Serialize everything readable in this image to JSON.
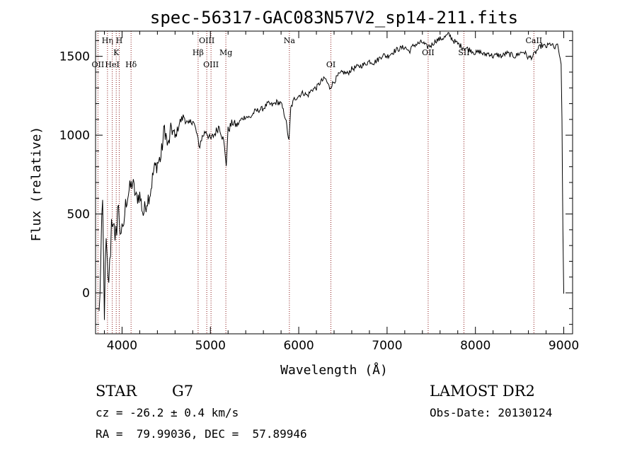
{
  "chart_data": {
    "type": "line",
    "title": "spec-56317-GAC083N57V2_sp14-211.fits",
    "xlabel": "Wavelength (Å)",
    "ylabel": "Flux (relative)",
    "xlim": [
      3700,
      9100
    ],
    "ylim": [
      -260,
      1660
    ],
    "xticks": [
      4000,
      5000,
      6000,
      7000,
      8000,
      9000
    ],
    "yticks": [
      0,
      500,
      1000,
      1500
    ],
    "line_color": "#000000",
    "marker_color": "#8b1a1a",
    "series": [
      {
        "x": [
          3740,
          3760,
          3780,
          3800,
          3820,
          3840,
          3860,
          3880,
          3900,
          3920,
          3950,
          3980,
          4010,
          4040,
          4080,
          4120,
          4160,
          4200,
          4240,
          4280,
          4320,
          4360,
          4400,
          4440,
          4480,
          4520,
          4560,
          4600,
          4650,
          4700,
          4750,
          4800,
          4850,
          4870,
          4900,
          4950,
          5000,
          5050,
          5100,
          5150,
          5180,
          5200,
          5250,
          5300,
          5350,
          5400,
          5450,
          5500,
          5550,
          5600,
          5650,
          5700,
          5750,
          5800,
          5850,
          5890,
          5910,
          5950,
          6000,
          6050,
          6100,
          6150,
          6200,
          6250,
          6300,
          6350,
          6400,
          6450,
          6500,
          6550,
          6600,
          6650,
          6700,
          6750,
          6800,
          6850,
          6900,
          6950,
          7000,
          7050,
          7100,
          7150,
          7200,
          7250,
          7300,
          7350,
          7400,
          7450,
          7500,
          7550,
          7600,
          7650,
          7700,
          7750,
          7800,
          7850,
          7900,
          7950,
          8000,
          8050,
          8100,
          8150,
          8200,
          8250,
          8300,
          8350,
          8400,
          8450,
          8500,
          8550,
          8600,
          8650,
          8700,
          8750,
          8800,
          8850,
          8900,
          8930,
          8950,
          8970,
          8980,
          8990,
          9000
        ],
        "y": [
          -150,
          200,
          550,
          -100,
          300,
          50,
          150,
          450,
          500,
          250,
          550,
          420,
          380,
          560,
          650,
          700,
          600,
          620,
          500,
          580,
          640,
          780,
          820,
          860,
          1050,
          920,
          1050,
          980,
          1080,
          1120,
          1060,
          1100,
          1000,
          920,
          980,
          1030,
          970,
          1010,
          1060,
          960,
          820,
          1030,
          1080,
          1060,
          1100,
          1120,
          1110,
          1150,
          1160,
          1170,
          1200,
          1190,
          1210,
          1200,
          1110,
          960,
          1170,
          1230,
          1250,
          1270,
          1250,
          1290,
          1300,
          1340,
          1360,
          1300,
          1340,
          1380,
          1400,
          1390,
          1420,
          1430,
          1440,
          1450,
          1470,
          1460,
          1480,
          1510,
          1500,
          1520,
          1540,
          1550,
          1560,
          1530,
          1570,
          1580,
          1590,
          1560,
          1570,
          1600,
          1610,
          1620,
          1640,
          1600,
          1580,
          1560,
          1550,
          1540,
          1520,
          1530,
          1510,
          1520,
          1500,
          1510,
          1500,
          1520,
          1510,
          1500,
          1520,
          1530,
          1490,
          1500,
          1540,
          1570,
          1560,
          1580,
          1550,
          1570,
          1520,
          1450,
          1100,
          400,
          -5
        ]
      }
    ],
    "line_markers": [
      {
        "label": "OII",
        "x": 3727,
        "row": 3
      },
      {
        "label": "Hη",
        "x": 3835,
        "row": 1
      },
      {
        "label": "HeI",
        "x": 3889,
        "row": 3
      },
      {
        "label": "K",
        "x": 3934,
        "row": 2
      },
      {
        "label": "H",
        "x": 3968,
        "row": 1
      },
      {
        "label": "Hδ",
        "x": 4102,
        "row": 3
      },
      {
        "label": "Hβ",
        "x": 4861,
        "row": 2
      },
      {
        "label": "OIII",
        "x": 4959,
        "row": 1
      },
      {
        "label": "OIII",
        "x": 5007,
        "row": 3
      },
      {
        "label": "Mg",
        "x": 5175,
        "row": 2
      },
      {
        "label": "Na",
        "x": 5894,
        "row": 1
      },
      {
        "label": "OI",
        "x": 6364,
        "row": 3
      },
      {
        "label": "OII",
        "x": 7465,
        "row": 2
      },
      {
        "label": "SII",
        "x": 7870,
        "row": 2
      },
      {
        "label": "CaII",
        "x": 8662,
        "row": 1
      }
    ]
  },
  "info": {
    "object_class": "STAR",
    "subclass": "G7",
    "survey": "LAMOST DR2",
    "cz": "cz = -26.2 ± 0.4 km/s",
    "obs_date": "Obs-Date: 20130124",
    "coords": "RA =  79.99036, DEC =  57.89946"
  }
}
